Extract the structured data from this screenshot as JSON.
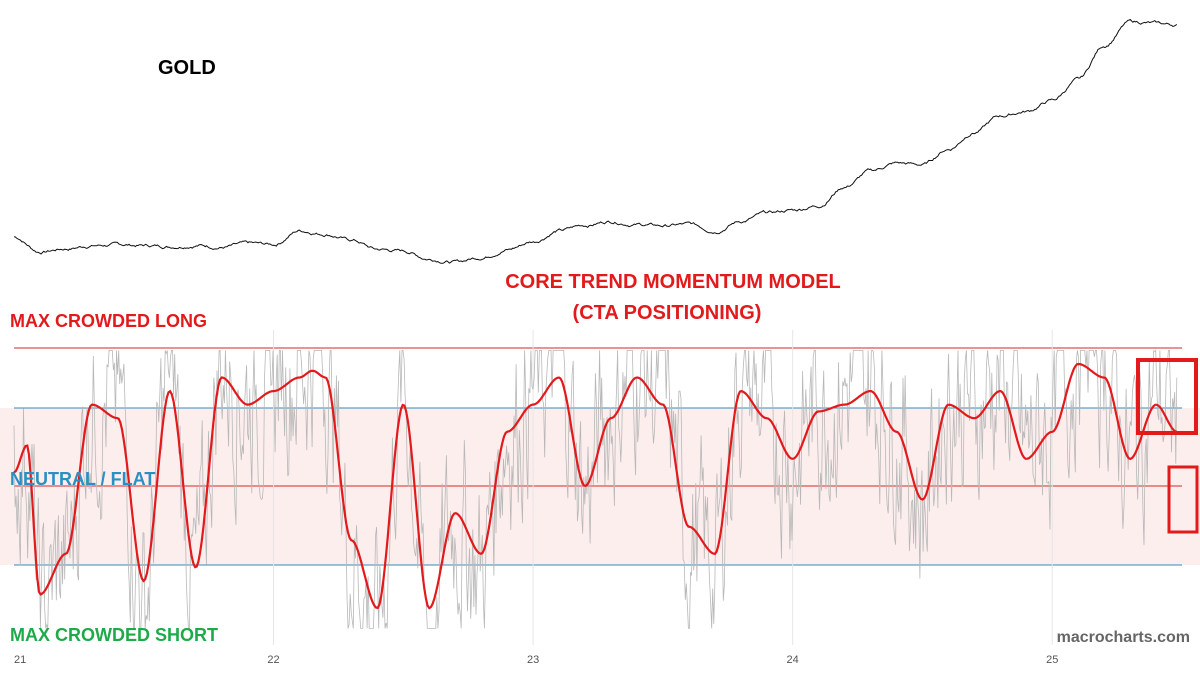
{
  "chart_data": [
    {
      "type": "line",
      "title": "GOLD",
      "x": [
        21.0,
        21.1,
        21.2,
        21.3,
        21.4,
        21.5,
        21.6,
        21.7,
        21.8,
        21.9,
        22.0,
        22.1,
        22.2,
        22.3,
        22.4,
        22.5,
        22.6,
        22.7,
        22.8,
        22.9,
        23.0,
        23.1,
        23.2,
        23.3,
        23.4,
        23.5,
        23.6,
        23.7,
        23.8,
        23.9,
        24.0,
        24.1,
        24.2,
        24.3,
        24.4,
        24.5,
        24.6,
        24.7,
        24.8,
        24.9,
        25.0,
        25.1,
        25.2,
        25.3,
        25.5
      ],
      "values": [
        1880,
        1785,
        1805,
        1825,
        1830,
        1825,
        1820,
        1830,
        1815,
        1835,
        1830,
        1920,
        1900,
        1860,
        1800,
        1790,
        1740,
        1720,
        1750,
        1800,
        1850,
        1920,
        1955,
        1980,
        1960,
        1950,
        1960,
        1920,
        1980,
        2030,
        2050,
        2080,
        2200,
        2300,
        2350,
        2340,
        2440,
        2550,
        2650,
        2680,
        2750,
        2880,
        3100,
        3250,
        3230
      ],
      "xlim": [
        21.0,
        25.5
      ]
    },
    {
      "type": "line",
      "title": "CORE TREND MOMENTUM MODEL",
      "subtitle": "(CTA POSITIONING)",
      "x": [
        21.0,
        21.05,
        21.1,
        21.2,
        21.3,
        21.4,
        21.5,
        21.6,
        21.7,
        21.8,
        21.9,
        22.0,
        22.1,
        22.15,
        22.2,
        22.3,
        22.4,
        22.5,
        22.6,
        22.7,
        22.8,
        22.9,
        23.0,
        23.1,
        23.2,
        23.3,
        23.4,
        23.5,
        23.6,
        23.7,
        23.8,
        23.9,
        24.0,
        24.1,
        24.2,
        24.3,
        24.4,
        24.5,
        24.6,
        24.7,
        24.8,
        24.9,
        25.0,
        25.1,
        25.2,
        25.3,
        25.4,
        25.48
      ],
      "values": [
        0.1,
        0.3,
        -0.8,
        -0.5,
        0.6,
        0.5,
        -0.7,
        0.7,
        -0.6,
        0.8,
        0.6,
        0.7,
        0.8,
        0.85,
        0.8,
        -0.4,
        -0.9,
        0.6,
        -0.9,
        -0.2,
        -0.5,
        0.4,
        0.6,
        0.8,
        0.0,
        0.5,
        0.8,
        0.6,
        -0.3,
        -0.5,
        0.7,
        0.5,
        0.2,
        0.55,
        0.6,
        0.7,
        0.4,
        -0.1,
        0.6,
        0.5,
        0.7,
        0.2,
        0.4,
        0.9,
        0.8,
        0.2,
        0.6,
        0.4
      ],
      "bands": {
        "max_long": 0.8,
        "upper": 0.4,
        "neutral": 0.0,
        "lower": -0.4,
        "max_short": -0.8
      },
      "ylim": [
        -1.1,
        1.1
      ],
      "xlim": [
        21.0,
        25.5
      ],
      "xticks": [
        "21",
        "22",
        "23",
        "24",
        "25"
      ]
    }
  ],
  "labels": {
    "max_long": "MAX CROWDED LONG",
    "neutral": "NEUTRAL / FLAT",
    "max_short": "MAX CROWDED SHORT",
    "watermark": "macrocharts.com"
  },
  "colors": {
    "gold_line": "#111111",
    "model_line": "#e31a1c",
    "raw_signal": "#b8b8b8",
    "band_fill": "#fdeeee",
    "band_line_red": "#d62728",
    "band_line_blue": "#2a8fc2",
    "label_red": "#e31a1c",
    "label_blue": "#2a8fc2",
    "label_green": "#1faa4a",
    "watermark": "#666666"
  }
}
